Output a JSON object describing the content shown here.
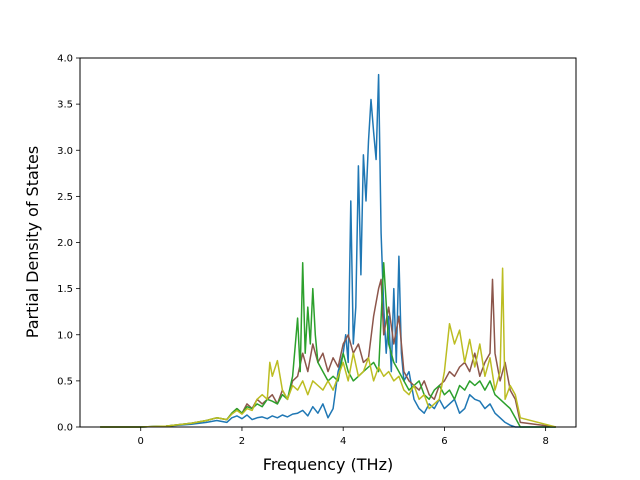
{
  "chart_data": {
    "type": "line",
    "title": "",
    "xlabel": "Frequency (THz)",
    "ylabel": "Partial Density of States",
    "xlim": [
      -1.2,
      8.6
    ],
    "ylim": [
      0.0,
      4.0
    ],
    "xticks": [
      0,
      2,
      4,
      6,
      8
    ],
    "yticks": [
      0.0,
      0.5,
      1.0,
      1.5,
      2.0,
      2.5,
      3.0,
      3.5,
      4.0
    ],
    "xtick_labels": [
      "0",
      "2",
      "4",
      "6",
      "8"
    ],
    "ytick_labels": [
      "0.0",
      "0.5",
      "1.0",
      "1.5",
      "2.0",
      "2.5",
      "3.0",
      "3.5",
      "4.0"
    ],
    "grid": false,
    "legend": "none",
    "series": [
      {
        "color": "#1f77b4",
        "x": [
          -0.8,
          0.0,
          0.5,
          1.0,
          1.3,
          1.5,
          1.7,
          1.8,
          1.9,
          2.0,
          2.1,
          2.2,
          2.3,
          2.4,
          2.5,
          2.6,
          2.7,
          2.8,
          2.9,
          3.0,
          3.1,
          3.2,
          3.3,
          3.4,
          3.5,
          3.6,
          3.7,
          3.8,
          3.9,
          4.0,
          4.05,
          4.1,
          4.15,
          4.2,
          4.25,
          4.3,
          4.35,
          4.4,
          4.45,
          4.5,
          4.55,
          4.6,
          4.65,
          4.7,
          4.75,
          4.8,
          4.85,
          4.9,
          4.95,
          5.0,
          5.05,
          5.1,
          5.15,
          5.2,
          5.3,
          5.4,
          5.5,
          5.6,
          5.7,
          5.8,
          5.9,
          6.0,
          6.1,
          6.2,
          6.3,
          6.4,
          6.5,
          6.6,
          6.7,
          6.8,
          6.9,
          7.0,
          7.1,
          7.2,
          7.3,
          7.4,
          7.5,
          8.2
        ],
        "y": [
          0.0,
          0.0,
          0.01,
          0.03,
          0.05,
          0.07,
          0.05,
          0.1,
          0.12,
          0.09,
          0.13,
          0.08,
          0.1,
          0.11,
          0.09,
          0.12,
          0.1,
          0.13,
          0.11,
          0.14,
          0.15,
          0.18,
          0.12,
          0.22,
          0.15,
          0.25,
          0.1,
          0.2,
          0.6,
          0.8,
          1.0,
          0.7,
          2.45,
          0.9,
          1.3,
          2.83,
          1.65,
          2.95,
          2.45,
          3.1,
          3.55,
          3.2,
          2.9,
          3.82,
          2.1,
          1.3,
          0.8,
          1.2,
          0.6,
          1.5,
          0.7,
          1.85,
          0.8,
          0.5,
          0.6,
          0.3,
          0.2,
          0.15,
          0.25,
          0.2,
          0.3,
          0.2,
          0.25,
          0.3,
          0.15,
          0.2,
          0.35,
          0.3,
          0.28,
          0.2,
          0.25,
          0.15,
          0.1,
          0.05,
          0.02,
          0.0,
          0.0,
          0.0
        ]
      },
      {
        "color": "#8c564b",
        "x": [
          -0.8,
          0.0,
          0.5,
          1.0,
          1.3,
          1.5,
          1.7,
          1.8,
          1.9,
          2.0,
          2.1,
          2.2,
          2.3,
          2.4,
          2.5,
          2.6,
          2.7,
          2.8,
          2.9,
          3.0,
          3.1,
          3.2,
          3.3,
          3.4,
          3.5,
          3.6,
          3.7,
          3.8,
          3.9,
          4.0,
          4.1,
          4.2,
          4.3,
          4.4,
          4.5,
          4.6,
          4.7,
          4.75,
          4.8,
          4.9,
          5.0,
          5.1,
          5.2,
          5.3,
          5.4,
          5.5,
          5.6,
          5.7,
          5.8,
          5.9,
          6.0,
          6.1,
          6.2,
          6.3,
          6.4,
          6.5,
          6.6,
          6.7,
          6.8,
          6.9,
          6.95,
          7.0,
          7.1,
          7.2,
          7.3,
          7.4,
          7.5,
          8.2
        ],
        "y": [
          0.0,
          0.0,
          0.01,
          0.04,
          0.07,
          0.1,
          0.08,
          0.15,
          0.2,
          0.15,
          0.25,
          0.2,
          0.3,
          0.25,
          0.3,
          0.35,
          0.25,
          0.4,
          0.3,
          0.5,
          0.55,
          0.8,
          0.6,
          0.9,
          0.7,
          0.8,
          0.6,
          0.75,
          0.65,
          0.9,
          1.0,
          0.8,
          0.9,
          0.7,
          0.75,
          1.2,
          1.5,
          1.6,
          1.0,
          1.3,
          0.9,
          1.2,
          0.6,
          0.5,
          0.45,
          0.4,
          0.5,
          0.35,
          0.3,
          0.45,
          0.5,
          0.6,
          0.55,
          0.65,
          0.7,
          0.6,
          0.8,
          0.55,
          0.7,
          0.8,
          1.6,
          0.8,
          0.5,
          0.7,
          0.4,
          0.3,
          0.05,
          0.0
        ]
      },
      {
        "color": "#2ca02c",
        "x": [
          -0.8,
          0.0,
          0.5,
          1.0,
          1.3,
          1.5,
          1.7,
          1.8,
          1.9,
          2.0,
          2.1,
          2.2,
          2.3,
          2.4,
          2.5,
          2.6,
          2.7,
          2.8,
          2.9,
          3.0,
          3.1,
          3.15,
          3.2,
          3.25,
          3.3,
          3.35,
          3.4,
          3.45,
          3.5,
          3.6,
          3.7,
          3.8,
          3.9,
          4.0,
          4.1,
          4.2,
          4.3,
          4.4,
          4.5,
          4.6,
          4.7,
          4.8,
          4.9,
          5.0,
          5.1,
          5.2,
          5.3,
          5.4,
          5.5,
          5.6,
          5.7,
          5.8,
          5.9,
          6.0,
          6.1,
          6.2,
          6.3,
          6.4,
          6.5,
          6.6,
          6.7,
          6.8,
          6.9,
          7.0,
          7.1,
          7.2,
          7.3,
          7.4,
          7.5,
          8.2
        ],
        "y": [
          0.0,
          0.0,
          0.01,
          0.04,
          0.07,
          0.1,
          0.08,
          0.15,
          0.2,
          0.15,
          0.22,
          0.2,
          0.25,
          0.22,
          0.3,
          0.28,
          0.25,
          0.35,
          0.3,
          0.55,
          1.18,
          0.6,
          1.78,
          0.8,
          1.3,
          0.9,
          1.5,
          1.0,
          0.7,
          0.6,
          0.5,
          0.55,
          0.5,
          0.8,
          0.6,
          0.5,
          0.55,
          0.6,
          0.65,
          0.7,
          0.6,
          1.78,
          0.9,
          0.7,
          0.6,
          0.5,
          0.4,
          0.45,
          0.5,
          0.35,
          0.3,
          0.4,
          0.45,
          0.35,
          0.4,
          0.3,
          0.45,
          0.4,
          0.5,
          0.45,
          0.5,
          0.4,
          0.5,
          0.35,
          0.3,
          0.25,
          0.2,
          0.1,
          0.0,
          0.0
        ]
      },
      {
        "color": "#bcbd22",
        "x": [
          -0.8,
          0.0,
          0.5,
          1.0,
          1.3,
          1.5,
          1.7,
          1.8,
          1.9,
          2.0,
          2.1,
          2.2,
          2.3,
          2.4,
          2.5,
          2.55,
          2.6,
          2.7,
          2.8,
          2.9,
          3.0,
          3.1,
          3.2,
          3.3,
          3.4,
          3.5,
          3.6,
          3.7,
          3.8,
          3.9,
          4.0,
          4.1,
          4.2,
          4.3,
          4.4,
          4.5,
          4.6,
          4.7,
          4.8,
          4.9,
          5.0,
          5.1,
          5.2,
          5.3,
          5.4,
          5.5,
          5.6,
          5.7,
          5.8,
          5.9,
          6.0,
          6.1,
          6.2,
          6.3,
          6.4,
          6.5,
          6.6,
          6.7,
          6.8,
          6.9,
          7.0,
          7.1,
          7.15,
          7.2,
          7.3,
          7.4,
          7.5,
          8.2
        ],
        "y": [
          0.0,
          0.0,
          0.01,
          0.04,
          0.07,
          0.1,
          0.08,
          0.14,
          0.18,
          0.14,
          0.2,
          0.18,
          0.3,
          0.35,
          0.3,
          0.7,
          0.55,
          0.72,
          0.4,
          0.3,
          0.45,
          0.4,
          0.5,
          0.35,
          0.5,
          0.45,
          0.4,
          0.5,
          0.4,
          0.55,
          0.7,
          0.5,
          0.8,
          0.55,
          0.6,
          0.75,
          0.5,
          0.65,
          0.55,
          0.6,
          0.5,
          0.55,
          0.4,
          0.35,
          0.45,
          0.3,
          0.35,
          0.2,
          0.25,
          0.3,
          0.6,
          1.12,
          0.9,
          1.05,
          0.7,
          0.95,
          0.65,
          0.9,
          0.55,
          0.75,
          0.4,
          0.6,
          1.72,
          0.3,
          0.45,
          0.35,
          0.1,
          0.0
        ]
      }
    ]
  }
}
